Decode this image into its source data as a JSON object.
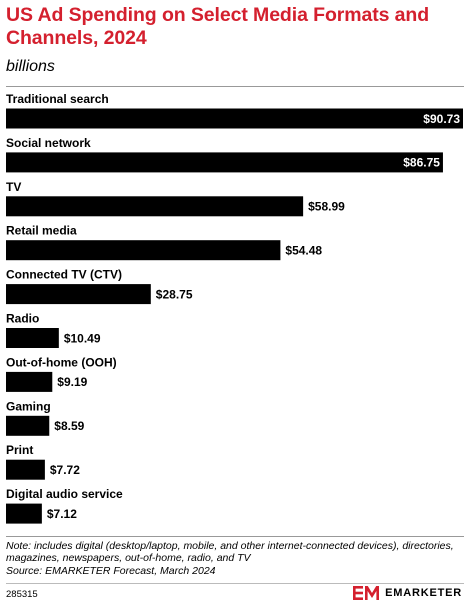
{
  "header": {
    "title": "US Ad Spending on Select Media Formats and Channels, 2024",
    "subtitle": "billions"
  },
  "chart_data": {
    "type": "bar",
    "orientation": "horizontal",
    "categories": [
      "Traditional search",
      "Social network",
      "TV",
      "Retail media",
      "Connected TV (CTV)",
      "Radio",
      "Out-of-home (OOH)",
      "Gaming",
      "Print",
      "Digital audio service"
    ],
    "values": [
      90.73,
      86.75,
      58.99,
      54.48,
      28.75,
      10.49,
      9.19,
      8.59,
      7.72,
      7.12
    ],
    "value_labels": [
      "$90.73",
      "$86.75",
      "$58.99",
      "$54.48",
      "$28.75",
      "$10.49",
      "$9.19",
      "$8.59",
      "$7.72",
      "$7.12"
    ],
    "title": "US Ad Spending on Select Media Formats and Channels, 2024",
    "subtitle": "billions",
    "xlabel": "",
    "ylabel": "",
    "grid": false,
    "legend": "none",
    "bar_color": "#000000"
  },
  "footer": {
    "note": "Note: includes digital (desktop/laptop, mobile, and other internet-connected devices), directories, magazines, newspapers, out-of-home, radio, and TV",
    "source": "Source: EMARKETER Forecast, March 2024",
    "chart_id": "285315",
    "brand": "EMARKETER",
    "brand_color": "#d4202e"
  }
}
